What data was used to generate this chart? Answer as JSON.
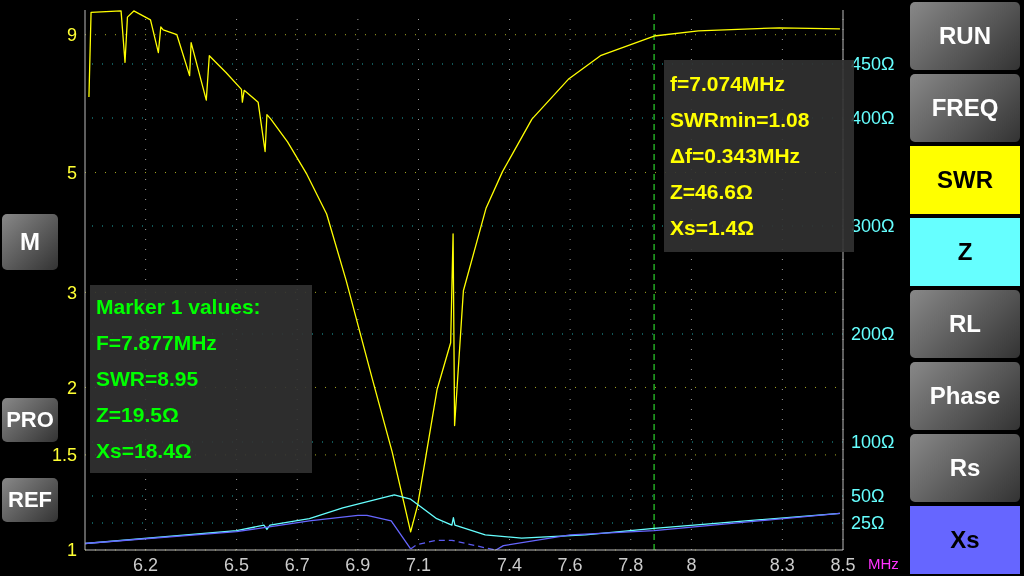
{
  "chart_data": {
    "type": "line",
    "xlabel": "MHz",
    "xlim": [
      6.0,
      8.5
    ],
    "xticks": [
      6.2,
      6.5,
      6.7,
      6.9,
      7.1,
      7.4,
      7.6,
      7.8,
      8,
      8.3,
      8.5
    ],
    "ylim": [
      1,
      10
    ],
    "yticks": [
      1,
      1.5,
      2,
      3,
      5,
      9
    ],
    "log": "y",
    "y2lim": [
      0,
      500
    ],
    "y2ticks": [
      {
        "value": 25,
        "label": "25Ω"
      },
      {
        "value": 50,
        "label": "50Ω"
      },
      {
        "value": 100,
        "label": "100Ω"
      },
      {
        "value": 200,
        "label": "200Ω"
      },
      {
        "value": 300,
        "label": "300Ω"
      },
      {
        "value": 400,
        "label": "400Ω"
      },
      {
        "value": 450,
        "label": "450Ω"
      }
    ],
    "grid": true,
    "legend": "right",
    "marker": "none",
    "series": [
      {
        "name": "SWR",
        "color": "#ffff00",
        "x": [
          6.013,
          6.02,
          6.119,
          6.132,
          6.14,
          6.161,
          6.216,
          6.242,
          6.25,
          6.258,
          6.303,
          6.345,
          6.35,
          6.4,
          6.41,
          6.465,
          6.516,
          6.519,
          6.525,
          6.571,
          6.594,
          6.6,
          6.613,
          6.668,
          6.732,
          6.797,
          6.861,
          6.948,
          7.013,
          7.074,
          7.097,
          7.161,
          7.206,
          7.214,
          7.219,
          7.248,
          7.323,
          7.377,
          7.474,
          7.594,
          7.7,
          7.877,
          8.023,
          8.29,
          8.49
        ],
        "values": [
          6.9,
          9.9,
          9.96,
          8.0,
          9.7,
          9.96,
          9.59,
          8.34,
          9.3,
          9.19,
          9.0,
          7.56,
          8.7,
          6.81,
          8.23,
          7.66,
          7.13,
          6.75,
          7.1,
          6.75,
          5.47,
          6.4,
          6.28,
          5.7,
          4.96,
          4.19,
          3.16,
          2.07,
          1.52,
          1.08,
          1.21,
          1.98,
          2.42,
          3.85,
          1.7,
          3.02,
          4.3,
          5.02,
          6.28,
          7.44,
          8.23,
          8.95,
          9.15,
          9.27,
          9.23
        ]
      },
      {
        "name": "Z",
        "color": "#66ffff",
        "axis": "y2",
        "x": [
          6.0,
          6.5,
          6.59,
          6.6,
          6.61,
          6.74,
          6.85,
          7.02,
          7.074,
          7.16,
          7.21,
          7.215,
          7.22,
          7.32,
          7.44,
          7.65,
          7.877,
          8.49
        ],
        "values": [
          6,
          18,
          23,
          19,
          23,
          29,
          39,
          51,
          47,
          29,
          23,
          30,
          23,
          14,
          11,
          14,
          20,
          34
        ]
      },
      {
        "name": "Xs",
        "color": "#6666ff",
        "axis": "y2",
        "x": [
          6.0,
          6.5,
          6.74,
          6.9,
          6.93,
          7.01,
          7.074,
          7.2,
          7.355,
          7.38,
          7.6,
          7.877,
          8.49
        ],
        "values": [
          6,
          17,
          27,
          32,
          32,
          27,
          1,
          null,
          0,
          4,
          14,
          18,
          34
        ]
      },
      {
        "color": "#5a5af0",
        "axis": "y2",
        "line_style": "dashed",
        "x": [
          7.074,
          7.094,
          7.16,
          7.21,
          7.32,
          7.355
        ],
        "values": [
          1,
          5,
          9,
          9,
          2,
          0
        ]
      }
    ],
    "ref_lines": [
      {
        "axis": "x",
        "value": 7.877,
        "color": "#22aa22",
        "line_style": "dashed"
      }
    ],
    "annotations": [
      "f=7.074MHz",
      "SWRmin=1.08",
      "Δf=0.343MHz",
      "Z=46.6Ω",
      "Xs=1.4Ω",
      "Marker 1 values:",
      "F=7.877MHz",
      "SWR=8.95",
      "Z=19.5Ω",
      "Xs=18.4Ω",
      "RUN",
      "FREQ",
      "RL",
      "Phase",
      "Rs",
      "M",
      "PRO",
      "REF"
    ]
  }
}
